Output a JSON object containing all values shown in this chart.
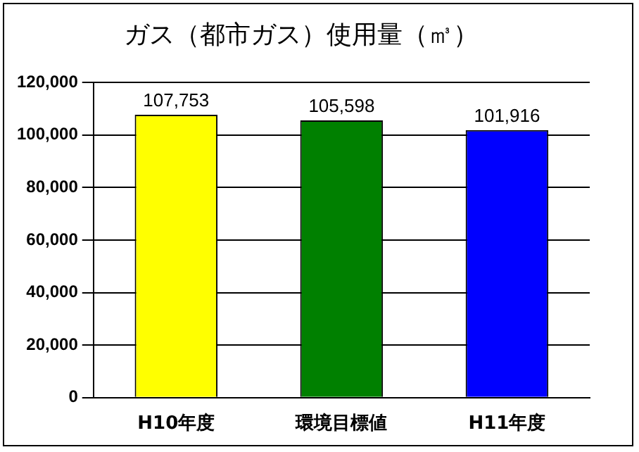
{
  "chart_data": {
    "type": "bar",
    "title": "ガス（都市ガス）使用量（㎥）",
    "categories": [
      "H10年度",
      "環境目標値",
      "H11年度"
    ],
    "values": [
      107753,
      105598,
      101916
    ],
    "colors": [
      "#ffff00",
      "#008000",
      "#0000ff"
    ],
    "value_labels": [
      "107,753",
      "105,598",
      "101,916"
    ],
    "ylim": [
      0,
      120000
    ],
    "yticks": [
      {
        "value": 0,
        "label": "0"
      },
      {
        "value": 20000,
        "label": "20,000"
      },
      {
        "value": 40000,
        "label": "40,000"
      },
      {
        "value": 60000,
        "label": "60,000"
      },
      {
        "value": 80000,
        "label": "80,000"
      },
      {
        "value": 100000,
        "label": "100,000"
      },
      {
        "value": 120000,
        "label": "120,000"
      }
    ],
    "grid": "y",
    "legend": false
  }
}
